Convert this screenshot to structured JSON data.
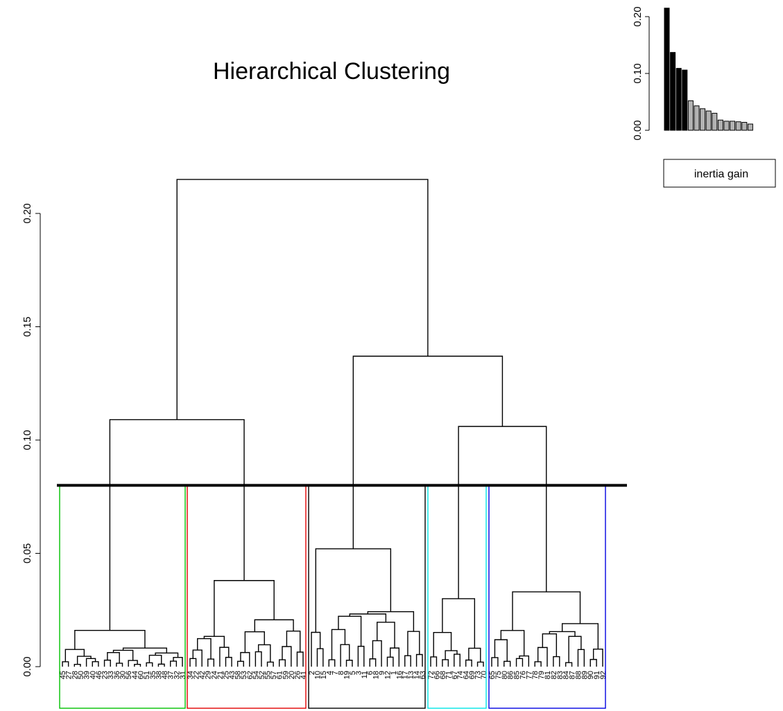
{
  "chart_data": [
    {
      "type": "dendrogram",
      "title": "Hierarchical Clustering",
      "ylabel": "",
      "ylim": [
        0,
        0.22
      ],
      "y_ticks": [
        "0.00",
        "0.05",
        "0.10",
        "0.15",
        "0.20"
      ],
      "y_tick_values": [
        0.0,
        0.05,
        0.1,
        0.15,
        0.2
      ],
      "cut_height": 0.08,
      "merges": [
        {
          "id": "root",
          "height": 0.215,
          "children": [
            "A",
            "B"
          ]
        },
        {
          "id": "A",
          "height": 0.109,
          "children": [
            "green",
            "red"
          ]
        },
        {
          "id": "B",
          "height": 0.137,
          "children": [
            "black",
            "C"
          ]
        },
        {
          "id": "C",
          "height": 0.106,
          "children": [
            "cyan",
            "blue"
          ]
        },
        {
          "id": "green",
          "height": 0.016
        },
        {
          "id": "red",
          "height": 0.038
        },
        {
          "id": "black",
          "height": 0.052
        },
        {
          "id": "cyan",
          "height": 0.03
        },
        {
          "id": "blue",
          "height": 0.033
        }
      ],
      "clusters": [
        {
          "color": "#00c000",
          "height": 0.016,
          "leaves": [
            "45",
            "27",
            "28",
            "50",
            "39",
            "40",
            "46",
            "23",
            "33",
            "36",
            "30",
            "56",
            "44",
            "60",
            "51",
            "35",
            "38",
            "48",
            "37",
            "32",
            "31"
          ]
        },
        {
          "color": "#e00000",
          "height": 0.038,
          "leaves": [
            "34",
            "22",
            "42",
            "29",
            "24",
            "21",
            "25",
            "43",
            "58",
            "53",
            "62",
            "54",
            "52",
            "55",
            "57",
            "61",
            "59",
            "20",
            "26",
            "41"
          ]
        },
        {
          "color": "#000000",
          "height": 0.052,
          "leaves": [
            "2",
            "10",
            "15",
            "4",
            "7",
            "8",
            "19",
            "5",
            "3",
            "11",
            "6",
            "18",
            "9",
            "12",
            "1",
            "16",
            "17",
            "13",
            "14",
            "63"
          ]
        },
        {
          "color": "#00e5e5",
          "height": 0.03,
          "leaves": [
            "72",
            "66",
            "68",
            "71",
            "67",
            "74",
            "64",
            "69",
            "73",
            "70"
          ]
        },
        {
          "color": "#0000e0",
          "height": 0.033,
          "leaves": [
            "65",
            "75",
            "80",
            "86",
            "85",
            "76",
            "77",
            "78",
            "79",
            "81",
            "82",
            "83",
            "84",
            "87",
            "88",
            "89",
            "90",
            "91",
            "92"
          ]
        }
      ]
    },
    {
      "type": "bar",
      "title": "",
      "y_ticks": [
        "0.00",
        "0.10",
        "0.20"
      ],
      "y_tick_values": [
        0.0,
        0.1,
        0.2
      ],
      "ylim": [
        0,
        0.22
      ],
      "values": [
        0.215,
        0.137,
        0.109,
        0.106,
        0.052,
        0.043,
        0.038,
        0.034,
        0.03,
        0.018,
        0.016,
        0.016,
        0.015,
        0.014,
        0.011
      ],
      "highlighted_count": 4,
      "highlight_color": "#000000",
      "other_color": "#b3b3b3",
      "legend": "inertia gain"
    }
  ]
}
